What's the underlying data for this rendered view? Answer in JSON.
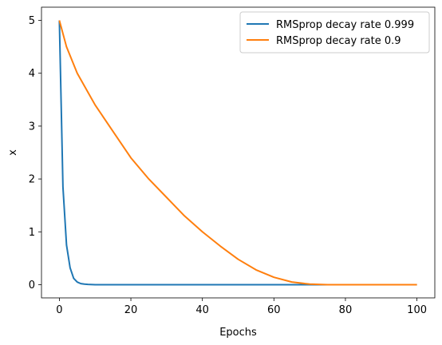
{
  "chart_data": {
    "type": "line",
    "xlabel": "Epochs",
    "ylabel": "x",
    "xlim": [
      -5,
      105
    ],
    "ylim": [
      -0.25,
      5.25
    ],
    "xticks": [
      0,
      20,
      40,
      60,
      80,
      100
    ],
    "yticks": [
      0,
      1,
      2,
      3,
      4,
      5
    ],
    "grid": false,
    "legend_position": "top-right",
    "series": [
      {
        "name": "RMSprop decay rate 0.999",
        "color": "#1f77b4",
        "x": [
          0,
          1,
          2,
          3,
          4,
          5,
          6,
          7,
          8,
          10,
          15,
          20,
          30,
          40,
          50,
          60,
          70,
          80,
          90,
          100
        ],
        "y": [
          5,
          1.85,
          0.75,
          0.32,
          0.12,
          0.05,
          0.02,
          0.01,
          0.005,
          0,
          0,
          0,
          0,
          0,
          0,
          0,
          0,
          0,
          0,
          0
        ]
      },
      {
        "name": "RMSprop decay rate 0.9",
        "color": "#ff7f0e",
        "x": [
          0,
          2,
          5,
          10,
          15,
          20,
          25,
          30,
          35,
          40,
          45,
          50,
          55,
          60,
          65,
          70,
          75,
          80,
          85,
          90,
          95,
          100
        ],
        "y": [
          5,
          4.5,
          4.0,
          3.4,
          2.9,
          2.4,
          2.0,
          1.65,
          1.3,
          1.0,
          0.73,
          0.48,
          0.28,
          0.14,
          0.05,
          0.01,
          0,
          0,
          0,
          0,
          0,
          0
        ]
      }
    ]
  }
}
